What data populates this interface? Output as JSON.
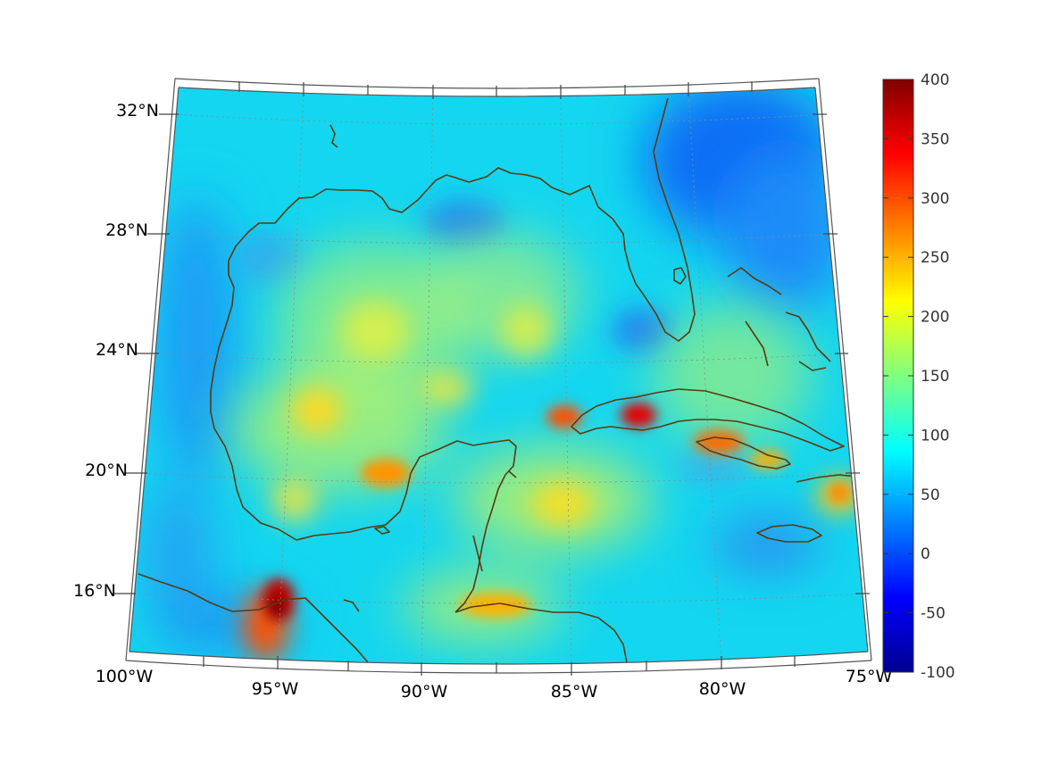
{
  "map": {
    "lat_labels": [
      "32°N",
      "28°N",
      "24°N",
      "20°N",
      "16°N"
    ],
    "lon_labels": [
      "100°W",
      "95°W",
      "90°W",
      "85°W",
      "80°W",
      "75°W"
    ]
  },
  "colorbar": {
    "colormap": "jet",
    "min": -100,
    "max": 400,
    "tick_labels": [
      "400",
      "350",
      "300",
      "250",
      "200",
      "150",
      "100",
      "50",
      "0",
      "-50",
      "-100"
    ]
  },
  "colors": {
    "coastline": "#5a3a10",
    "graticule": "#8a8a8a",
    "frame": "#555555"
  }
}
